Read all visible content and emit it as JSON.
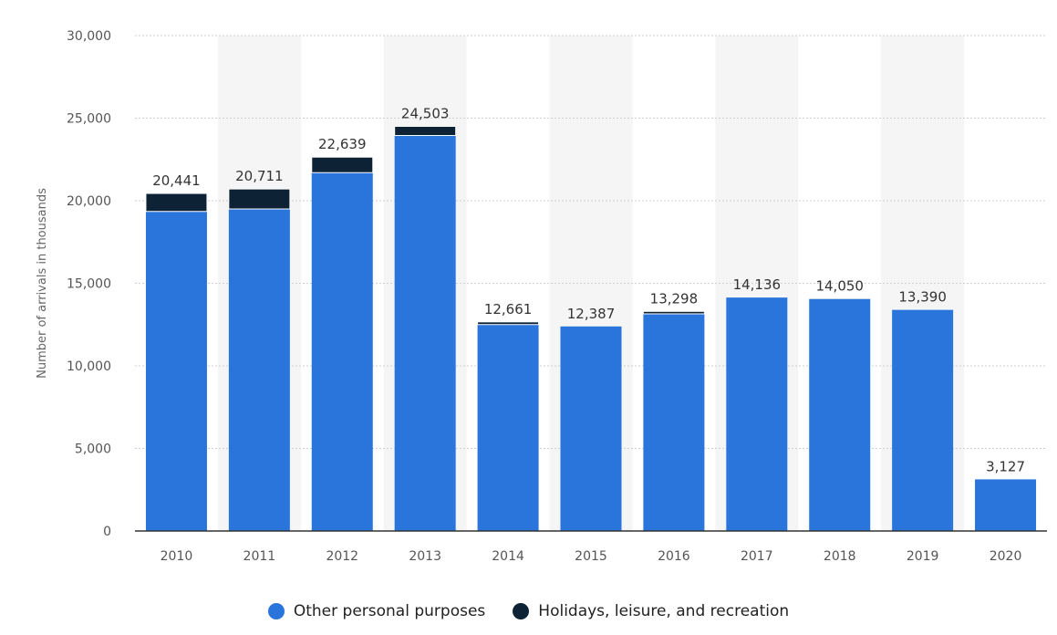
{
  "chart_data": {
    "type": "bar",
    "stacked": true,
    "categories": [
      "2010",
      "2011",
      "2012",
      "2013",
      "2014",
      "2015",
      "2016",
      "2017",
      "2018",
      "2019",
      "2020"
    ],
    "series": [
      {
        "name": "Other personal purposes",
        "color": "#2a75dc",
        "values": [
          19350,
          19500,
          21700,
          23950,
          12500,
          12387,
          13150,
          14136,
          14050,
          13390,
          3127
        ]
      },
      {
        "name": "Holidays, leisure, and recreation",
        "color": "#0e2236",
        "values": [
          1091,
          1211,
          939,
          553,
          161,
          0,
          148,
          0,
          0,
          0,
          0
        ]
      }
    ],
    "totals": [
      "20,441",
      "20,711",
      "22,639",
      "24,503",
      "12,661",
      "12,387",
      "13,298",
      "14,136",
      "14,050",
      "13,390",
      "3,127"
    ],
    "ylabel": "Number of arrivals in thousands",
    "ylim": [
      0,
      30000
    ],
    "yticks": [
      0,
      5000,
      10000,
      15000,
      20000,
      25000,
      30000
    ],
    "ytick_labels": [
      "0",
      "5,000",
      "10,000",
      "15,000",
      "20,000",
      "25,000",
      "30,000"
    ],
    "grid": true,
    "legend_position": "bottom"
  }
}
